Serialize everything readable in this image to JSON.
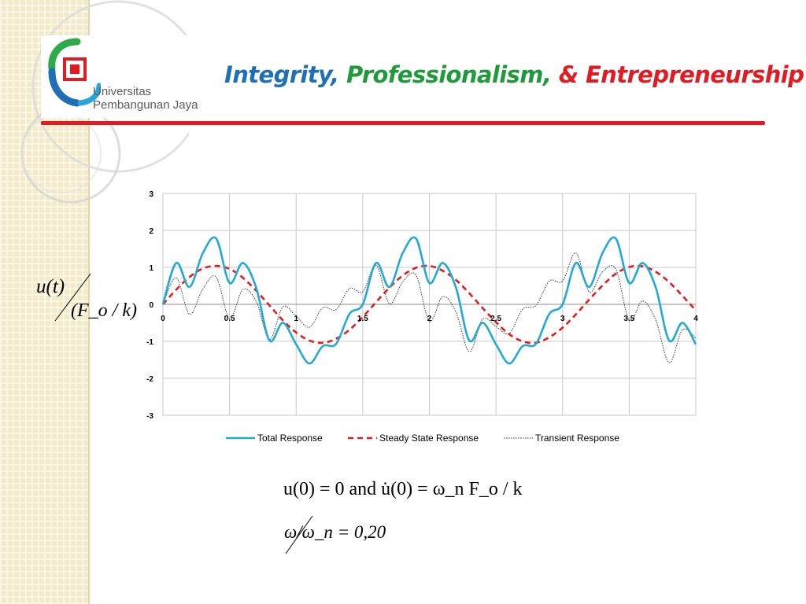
{
  "header": {
    "title_parts": [
      "Integrity,",
      "Professionalism,",
      "& Entrepreneurship"
    ],
    "logo_line1": "Universitas",
    "logo_line2": "Pembangunan Jaya"
  },
  "colors": {
    "title_blue": "#1f6fb5",
    "title_green": "#1f9a3b",
    "accent_red": "#e21b23",
    "total_series": "#22a9d6",
    "steady_series": "#e11d1d",
    "transient_series": "#333333"
  },
  "chart_data": {
    "type": "line",
    "title": "",
    "xlabel": "",
    "ylabel": "u(t) / (F_o / k)",
    "xlim": [
      0,
      4
    ],
    "ylim": [
      -3,
      3
    ],
    "x_ticks": [
      "0",
      "0.5",
      "1",
      "1.5",
      "2",
      "2.5",
      "3",
      "3.5",
      "4"
    ],
    "y_ticks": [
      "3",
      "2",
      "1",
      "0",
      "-1",
      "-2",
      "-3"
    ],
    "grid": true,
    "legend_position": "bottom",
    "frequency_ratio": 0.2,
    "series": [
      {
        "name": "Total Response",
        "style": "solid",
        "x": [
          0,
          0.1,
          0.2,
          0.3,
          0.4,
          0.5,
          0.6,
          0.7,
          0.8,
          0.9,
          1.0,
          1.1,
          1.2,
          1.3,
          1.4,
          1.5,
          1.6,
          1.7,
          1.8,
          1.9,
          2.0,
          2.1,
          2.2,
          2.3,
          2.4,
          2.5,
          2.6,
          2.7,
          2.8,
          2.9,
          3.0,
          3.1,
          3.2,
          3.3,
          3.4,
          3.5,
          3.6,
          3.7,
          3.8,
          3.9,
          4.0
        ],
        "y": [
          0,
          1.12,
          0.47,
          1.39,
          1.78,
          0.58,
          1.12,
          0.45,
          -0.98,
          -0.5,
          -1.08,
          -1.6,
          -1.13,
          -1.07,
          -0.26,
          0,
          1.12,
          0.47,
          1.39,
          1.78,
          0.58,
          1.12,
          0.45,
          -0.98,
          -0.5,
          -1.08,
          -1.6,
          -1.13,
          -1.07,
          -0.26,
          0,
          1.12,
          0.47,
          1.39,
          1.78,
          0.58,
          1.12,
          0.45,
          -0.98,
          -0.5,
          -1.08
        ]
      },
      {
        "name": "Steady State Response",
        "style": "dashed",
        "x": [
          0,
          0.1,
          0.2,
          0.3,
          0.4,
          0.5,
          0.6,
          0.7,
          0.8,
          0.9,
          1.0,
          1.1,
          1.2,
          1.3,
          1.4,
          1.5,
          1.6,
          1.7,
          1.8,
          1.9,
          2.0,
          2.1,
          2.2,
          2.3,
          2.4,
          2.5,
          2.6,
          2.7,
          2.8,
          2.9,
          3.0,
          3.1,
          3.2,
          3.3,
          3.4,
          3.5,
          3.6,
          3.7,
          3.8,
          3.9,
          4.0
        ],
        "y": [
          0,
          0.4,
          0.74,
          0.97,
          1.04,
          0.96,
          0.72,
          0.37,
          -0.03,
          -0.43,
          -0.76,
          -0.98,
          -1.04,
          -0.93,
          -0.69,
          -0.34,
          0.06,
          0.45,
          0.78,
          0.99,
          1.04,
          0.91,
          0.66,
          0.3,
          -0.1,
          -0.48,
          -0.81,
          -1.0,
          -1.04,
          -0.89,
          -0.63,
          -0.27,
          0.13,
          0.51,
          0.83,
          1.01,
          1.03,
          0.88,
          0.6,
          0.23,
          -0.16
        ]
      },
      {
        "name": "Transient Response",
        "style": "dotted",
        "x": [
          0,
          0.1,
          0.2,
          0.3,
          0.4,
          0.5,
          0.6,
          0.7,
          0.8,
          0.9,
          1.0,
          1.1,
          1.2,
          1.3,
          1.4,
          1.5,
          1.6,
          1.7,
          1.8,
          1.9,
          2.0,
          2.1,
          2.2,
          2.3,
          2.4,
          2.5,
          2.6,
          2.7,
          2.8,
          2.9,
          3.0,
          3.1,
          3.2,
          3.3,
          3.4,
          3.5,
          3.6,
          3.7,
          3.8,
          3.9,
          4.0
        ],
        "y": [
          0,
          0.72,
          -0.27,
          0.42,
          0.74,
          -0.38,
          0.4,
          0.08,
          -0.95,
          -0.07,
          -0.32,
          -0.62,
          -0.09,
          -0.14,
          0.43,
          0.34,
          1.06,
          0.02,
          0.61,
          0.79,
          -0.46,
          0.21,
          -0.21,
          -1.28,
          -0.4,
          -0.6,
          -0.79,
          -0.13,
          -0.03,
          0.63,
          0.63,
          1.39,
          0.34,
          0.88,
          0.95,
          -0.43,
          0.09,
          -0.43,
          -1.58,
          -0.69,
          -0.92
        ]
      }
    ]
  },
  "equations": {
    "ylabel_numerator": "u(t)",
    "ylabel_denominator": "(F_o / k)",
    "initial_conditions": "u(0) = 0 and u̇(0) = ω_n F_o / k",
    "frequency_ratio": "ω/ω_n = 0,20"
  }
}
